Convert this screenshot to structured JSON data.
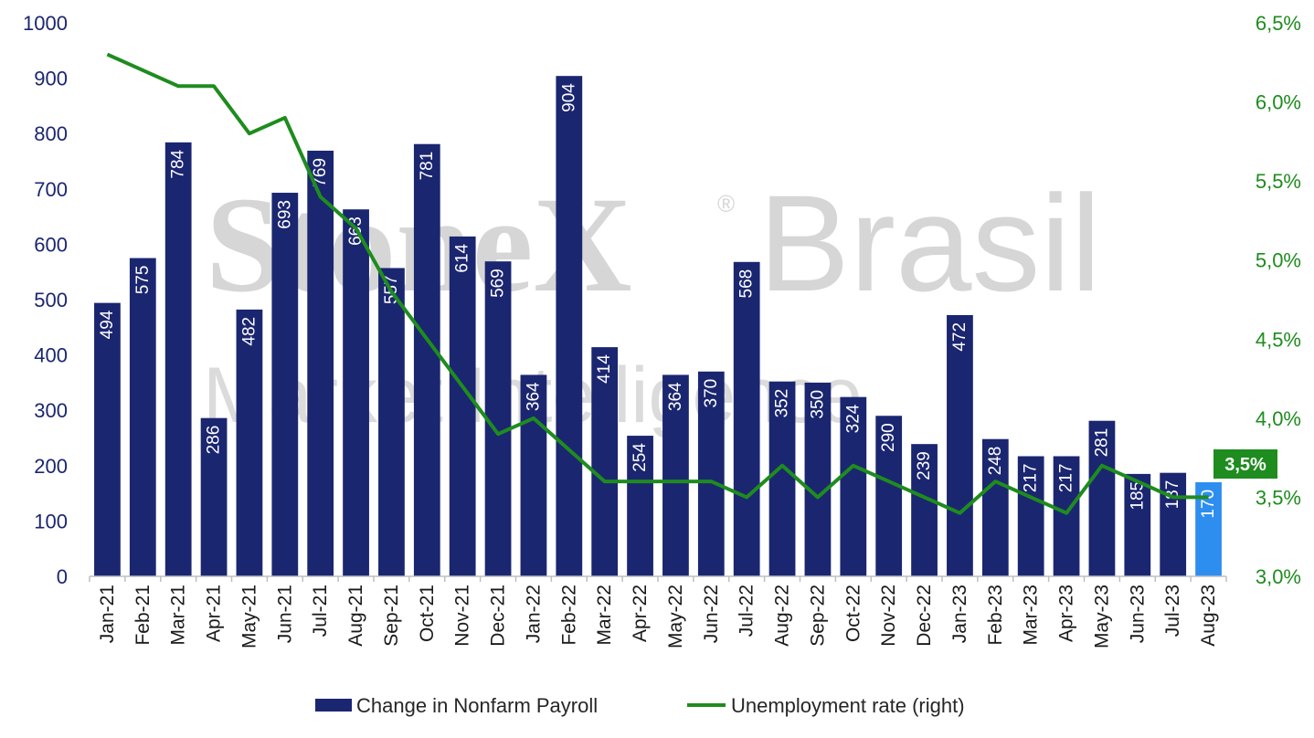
{
  "watermark": {
    "brand": "StoneX",
    "brand_suffix": "Brasil",
    "registered": "®",
    "subtitle": "Market Intelligence"
  },
  "legend": {
    "bars": "Change in Nonfarm Payroll",
    "line": "Unemployment rate (right)"
  },
  "callout": "3,5%",
  "colors": {
    "bar": "#1b2670",
    "bar_highlight": "#2e8ef0",
    "line": "#1e8c1e",
    "left_axis_text": "#1b2670",
    "right_axis_text": "#1e8c1e"
  },
  "chart_data": {
    "type": "bar",
    "categories": [
      "Jan-21",
      "Feb-21",
      "Mar-21",
      "Apr-21",
      "May-21",
      "Jun-21",
      "Jul-21",
      "Aug-21",
      "Sep-21",
      "Oct-21",
      "Nov-21",
      "Dec-21",
      "Jan-22",
      "Feb-22",
      "Mar-22",
      "Apr-22",
      "May-22",
      "Jun-22",
      "Jul-22",
      "Aug-22",
      "Sep-22",
      "Oct-22",
      "Nov-22",
      "Dec-22",
      "Jan-23",
      "Feb-23",
      "Mar-23",
      "Apr-23",
      "May-23",
      "Jun-23",
      "Jul-23",
      "Aug-23"
    ],
    "series": [
      {
        "name": "Change in Nonfarm Payroll",
        "type": "bar",
        "axis": "left",
        "values": [
          494,
          575,
          784,
          286,
          482,
          693,
          769,
          663,
          557,
          781,
          614,
          569,
          364,
          904,
          414,
          254,
          364,
          370,
          568,
          352,
          350,
          324,
          290,
          239,
          472,
          248,
          217,
          217,
          281,
          185,
          187,
          170
        ],
        "labels": [
          "494",
          "575",
          "784",
          "286",
          "482",
          "693",
          "769",
          "663",
          "557",
          "781",
          "614",
          "569",
          "364",
          "904",
          "414",
          "254",
          "364",
          "370",
          "568",
          "352",
          "350",
          "324",
          "290",
          "239",
          "472",
          "248",
          "217",
          "217",
          "281",
          "185",
          "187",
          "170"
        ],
        "highlight_last": true
      },
      {
        "name": "Unemployment rate (right)",
        "type": "line",
        "axis": "right",
        "values": [
          6.3,
          6.2,
          6.1,
          6.1,
          5.8,
          5.9,
          5.4,
          5.2,
          4.8,
          4.5,
          4.2,
          3.9,
          4.0,
          3.8,
          3.6,
          3.6,
          3.6,
          3.6,
          3.5,
          3.7,
          3.5,
          3.7,
          3.6,
          3.5,
          3.4,
          3.6,
          3.5,
          3.4,
          3.7,
          3.6,
          3.5,
          3.5
        ]
      }
    ],
    "y_left": {
      "min": 0,
      "max": 1000,
      "ticks": [
        "0",
        "100",
        "200",
        "300",
        "400",
        "500",
        "600",
        "700",
        "800",
        "900",
        "1000"
      ]
    },
    "y_right": {
      "min": 3.0,
      "max": 6.5,
      "ticks": [
        "3,0%",
        "3,5%",
        "4,0%",
        "4,5%",
        "5,0%",
        "5,5%",
        "6,0%",
        "6,5%"
      ]
    },
    "grid": false,
    "legend_position": "bottom-center"
  }
}
